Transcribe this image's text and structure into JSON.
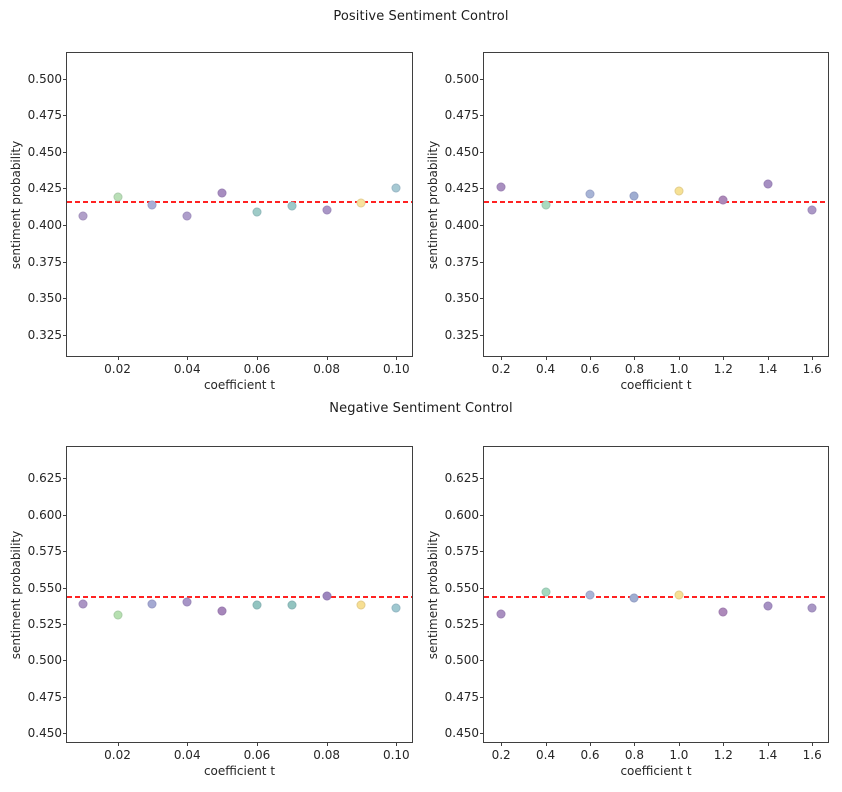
{
  "figure": {
    "row_titles": [
      "Positive Sentiment Control",
      "Negative Sentiment Control"
    ]
  },
  "style": {
    "baseline_color": "#ff2222",
    "axis_color": "#3f3f3f",
    "text_color": "#262626"
  },
  "chart_data": [
    {
      "id": "positive-small-t",
      "type": "scatter",
      "row_title": "Positive Sentiment Control",
      "xlabel": "coefficient t",
      "ylabel": "sentiment probability",
      "xlim": [
        0.0055,
        0.1045
      ],
      "ylim": [
        0.3105,
        0.5175
      ],
      "grid": false,
      "xticks": {
        "values": [
          0.02,
          0.04,
          0.06,
          0.08,
          0.1
        ],
        "labels": [
          "0.02",
          "0.04",
          "0.06",
          "0.08",
          "0.10"
        ]
      },
      "yticks": {
        "values": [
          0.325,
          0.35,
          0.375,
          0.4,
          0.425,
          0.45,
          0.475,
          0.5
        ],
        "labels": [
          "0.325",
          "0.350",
          "0.375",
          "0.400",
          "0.425",
          "0.450",
          "0.475",
          "0.500"
        ]
      },
      "baseline": {
        "y": 0.4155,
        "style": "dashed",
        "color": "#ff2222"
      },
      "points": [
        {
          "x": 0.01,
          "y": 0.406,
          "color": "#b1a0c9"
        },
        {
          "x": 0.02,
          "y": 0.419,
          "color": "#b9dfb6"
        },
        {
          "x": 0.03,
          "y": 0.414,
          "color": "#a9aed6"
        },
        {
          "x": 0.04,
          "y": 0.406,
          "color": "#ae9ecb"
        },
        {
          "x": 0.05,
          "y": 0.422,
          "color": "#a78dc0"
        },
        {
          "x": 0.06,
          "y": 0.409,
          "color": "#9ecbc7"
        },
        {
          "x": 0.07,
          "y": 0.413,
          "color": "#9bc9c9"
        },
        {
          "x": 0.08,
          "y": 0.41,
          "color": "#a996c6"
        },
        {
          "x": 0.09,
          "y": 0.415,
          "color": "#f8e29c"
        },
        {
          "x": 0.1,
          "y": 0.425,
          "color": "#a6c9d3"
        }
      ]
    },
    {
      "id": "positive-large-t",
      "type": "scatter",
      "row_title": "Positive Sentiment Control",
      "xlabel": "coefficient t",
      "ylabel": "sentiment probability",
      "xlim": [
        0.123,
        1.671
      ],
      "ylim": [
        0.3105,
        0.5175
      ],
      "grid": false,
      "xticks": {
        "values": [
          0.2,
          0.4,
          0.6,
          0.8,
          1.0,
          1.2,
          1.4,
          1.6
        ],
        "labels": [
          "0.2",
          "0.4",
          "0.6",
          "0.8",
          "1.0",
          "1.2",
          "1.4",
          "1.6"
        ]
      },
      "yticks": {
        "values": [
          0.325,
          0.35,
          0.375,
          0.4,
          0.425,
          0.45,
          0.475,
          0.5
        ],
        "labels": [
          "0.325",
          "0.350",
          "0.375",
          "0.400",
          "0.425",
          "0.450",
          "0.475",
          "0.500"
        ]
      },
      "baseline": {
        "y": 0.4155,
        "style": "dashed",
        "color": "#ff2222"
      },
      "points": [
        {
          "x": 0.2,
          "y": 0.426,
          "color": "#a98fc0"
        },
        {
          "x": 0.4,
          "y": 0.414,
          "color": "#aadabf"
        },
        {
          "x": 0.6,
          "y": 0.421,
          "color": "#a7b4d6"
        },
        {
          "x": 0.8,
          "y": 0.42,
          "color": "#9fadd1"
        },
        {
          "x": 1.0,
          "y": 0.423,
          "color": "#f6e194"
        },
        {
          "x": 1.2,
          "y": 0.417,
          "color": "#ad88b9"
        },
        {
          "x": 1.4,
          "y": 0.428,
          "color": "#a68fc2"
        },
        {
          "x": 1.6,
          "y": 0.41,
          "color": "#ab98c6"
        }
      ]
    },
    {
      "id": "negative-small-t",
      "type": "scatter",
      "row_title": "Negative Sentiment Control",
      "xlabel": "coefficient t",
      "ylabel": "sentiment probability",
      "xlim": [
        0.0055,
        0.1045
      ],
      "ylim": [
        0.4438,
        0.6466
      ],
      "grid": false,
      "xticks": {
        "values": [
          0.02,
          0.04,
          0.06,
          0.08,
          0.1
        ],
        "labels": [
          "0.02",
          "0.04",
          "0.06",
          "0.08",
          "0.10"
        ]
      },
      "yticks": {
        "values": [
          0.45,
          0.475,
          0.5,
          0.525,
          0.55,
          0.575,
          0.6,
          0.625
        ],
        "labels": [
          "0.450",
          "0.475",
          "0.500",
          "0.525",
          "0.550",
          "0.575",
          "0.600",
          "0.625"
        ]
      },
      "baseline": {
        "y": 0.5435,
        "style": "dashed",
        "color": "#ff2222"
      },
      "points": [
        {
          "x": 0.01,
          "y": 0.539,
          "color": "#ab95c4"
        },
        {
          "x": 0.02,
          "y": 0.531,
          "color": "#b6e0b0"
        },
        {
          "x": 0.03,
          "y": 0.539,
          "color": "#a4a9d2"
        },
        {
          "x": 0.04,
          "y": 0.54,
          "color": "#a795c6"
        },
        {
          "x": 0.05,
          "y": 0.534,
          "color": "#a686ba"
        },
        {
          "x": 0.06,
          "y": 0.538,
          "color": "#92c4c0"
        },
        {
          "x": 0.07,
          "y": 0.538,
          "color": "#92c4c0"
        },
        {
          "x": 0.08,
          "y": 0.544,
          "color": "#9c86be"
        },
        {
          "x": 0.09,
          "y": 0.538,
          "color": "#f7df92"
        },
        {
          "x": 0.1,
          "y": 0.536,
          "color": "#9fc8d0"
        }
      ]
    },
    {
      "id": "negative-large-t",
      "type": "scatter",
      "row_title": "Negative Sentiment Control",
      "xlabel": "coefficient t",
      "ylabel": "sentiment probability",
      "xlim": [
        0.123,
        1.671
      ],
      "ylim": [
        0.4438,
        0.6466
      ],
      "grid": false,
      "xticks": {
        "values": [
          0.2,
          0.4,
          0.6,
          0.8,
          1.0,
          1.2,
          1.4,
          1.6
        ],
        "labels": [
          "0.2",
          "0.4",
          "0.6",
          "0.8",
          "1.0",
          "1.2",
          "1.4",
          "1.6"
        ]
      },
      "yticks": {
        "values": [
          0.45,
          0.475,
          0.5,
          0.525,
          0.55,
          0.575,
          0.6,
          0.625
        ],
        "labels": [
          "0.450",
          "0.475",
          "0.500",
          "0.525",
          "0.550",
          "0.575",
          "0.600",
          "0.625"
        ]
      },
      "baseline": {
        "y": 0.5435,
        "style": "dashed",
        "color": "#ff2222"
      },
      "points": [
        {
          "x": 0.2,
          "y": 0.532,
          "color": "#a98fc0"
        },
        {
          "x": 0.4,
          "y": 0.547,
          "color": "#a4d9be"
        },
        {
          "x": 0.6,
          "y": 0.545,
          "color": "#a9b4d6"
        },
        {
          "x": 0.8,
          "y": 0.543,
          "color": "#9fadd1"
        },
        {
          "x": 1.0,
          "y": 0.545,
          "color": "#f6e194"
        },
        {
          "x": 1.2,
          "y": 0.533,
          "color": "#ad89ba"
        },
        {
          "x": 1.4,
          "y": 0.537,
          "color": "#a691c3"
        },
        {
          "x": 1.6,
          "y": 0.536,
          "color": "#a997c5"
        }
      ]
    }
  ]
}
